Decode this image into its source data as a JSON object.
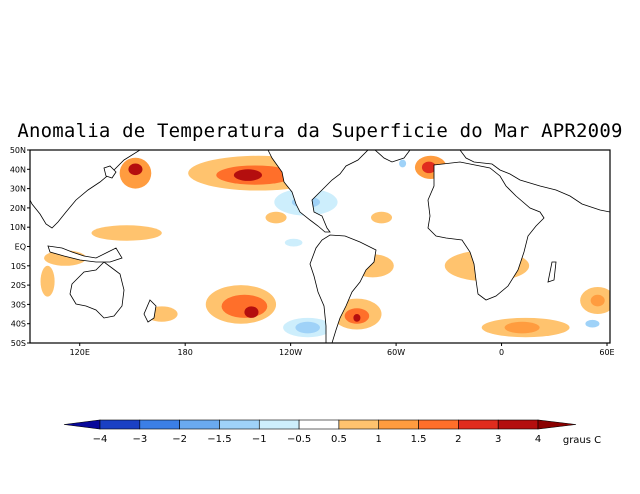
{
  "title": "Anomalia de Temperatura da Superficie do Mar APR2009",
  "map": {
    "lat_labels": [
      "50N",
      "40N",
      "30N",
      "20N",
      "10N",
      "EQ",
      "10S",
      "20S",
      "30S",
      "40S",
      "50S"
    ],
    "lon_labels": [
      "120E",
      "180",
      "120W",
      "60W",
      "0",
      "60E"
    ],
    "region": {
      "lon_range": [
        90,
        420
      ],
      "lat_range": [
        -50,
        50
      ]
    }
  },
  "colorbar": {
    "unit_label": "graus C",
    "labels": [
      "−4",
      "−3",
      "−2",
      "−1.5",
      "−1",
      "−0.5",
      "0.5",
      "1",
      "1.5",
      "2",
      "3",
      "4"
    ],
    "colors": [
      "#08089a",
      "#1a40c4",
      "#3b7fe6",
      "#6aaaf0",
      "#9fd2f8",
      "#cdeefc",
      "#ffffff",
      "#ffc36e",
      "#ff9c3f",
      "#ff6f2a",
      "#e02c1e",
      "#b40e0e",
      "#8a0000"
    ]
  },
  "anomalies": [
    {
      "name": "n-pacific-warm",
      "lon": 220,
      "lat": 38,
      "rx": 40,
      "ry": 9,
      "level": 1
    },
    {
      "name": "n-pacific-warm-core",
      "lon": 218,
      "lat": 37,
      "rx": 22,
      "ry": 5,
      "level": 3
    },
    {
      "name": "n-pacific-warm-peak",
      "lon": 214,
      "lat": 37,
      "rx": 8,
      "ry": 3,
      "level": 5
    },
    {
      "name": "japan-warm",
      "lon": 150,
      "lat": 38,
      "rx": 9,
      "ry": 8,
      "level": 2
    },
    {
      "name": "japan-warm-core",
      "lon": 150,
      "lat": 40,
      "rx": 4,
      "ry": 3,
      "level": 5
    },
    {
      "name": "ne-pacific-cool",
      "lon": 247,
      "lat": 23,
      "rx": 18,
      "ry": 7,
      "level": -1
    },
    {
      "name": "ne-pacific-cool-core",
      "lon": 247,
      "lat": 23,
      "rx": 8,
      "ry": 3,
      "level": -2
    },
    {
      "name": "n-atlantic-warm",
      "lon": 318,
      "lat": 41,
      "rx": 9,
      "ry": 6,
      "level": 2
    },
    {
      "name": "n-atlantic-warm-peak",
      "lon": 317,
      "lat": 41,
      "rx": 4,
      "ry": 3,
      "level": 4
    },
    {
      "name": "n-atlantic-warm-b",
      "lon": 336,
      "lat": 35,
      "rx": 8,
      "ry": 5,
      "level": 1
    },
    {
      "name": "med-warm",
      "lon": 398,
      "lat": 38,
      "rx": 8,
      "ry": 5,
      "level": 1
    },
    {
      "name": "med-warm-peak",
      "lon": 400,
      "lat": 42,
      "rx": 2,
      "ry": 2,
      "level": 5
    },
    {
      "name": "trop-atlantic-cool",
      "lon": 346,
      "lat": 6,
      "rx": 9,
      "ry": 5,
      "level": -1
    },
    {
      "name": "trop-atlantic-cool-core",
      "lon": 346,
      "lat": 6,
      "rx": 4,
      "ry": 2,
      "level": -2
    },
    {
      "name": "s-atlantic-warm",
      "lon": 350,
      "lat": -10,
      "rx": 24,
      "ry": 8,
      "level": 1
    },
    {
      "name": "se-pacific-warm",
      "lon": 285,
      "lat": -10,
      "rx": 12,
      "ry": 6,
      "level": 1
    },
    {
      "name": "s-pacific-warm",
      "lon": 210,
      "lat": -30,
      "rx": 20,
      "ry": 10,
      "level": 1
    },
    {
      "name": "s-pacific-warm-core",
      "lon": 212,
      "lat": -31,
      "rx": 13,
      "ry": 6,
      "level": 3
    },
    {
      "name": "s-pacific-warm-peak",
      "lon": 216,
      "lat": -34,
      "rx": 4,
      "ry": 3,
      "level": 5
    },
    {
      "name": "s-pacific-warm-b",
      "lon": 276,
      "lat": -35,
      "rx": 14,
      "ry": 8,
      "level": 1
    },
    {
      "name": "s-pacific-warm-b-core",
      "lon": 276,
      "lat": -36,
      "rx": 7,
      "ry": 4,
      "level": 3
    },
    {
      "name": "s-pacific-warm-b-peak",
      "lon": 276,
      "lat": -37,
      "rx": 2,
      "ry": 2,
      "level": 5
    },
    {
      "name": "s-pacific-cool",
      "lon": 248,
      "lat": -42,
      "rx": 14,
      "ry": 5,
      "level": -1
    },
    {
      "name": "s-pacific-cool-core",
      "lon": 248,
      "lat": -42,
      "rx": 7,
      "ry": 3,
      "level": -2
    },
    {
      "name": "s-ocean-warm",
      "lon": 372,
      "lat": -42,
      "rx": 25,
      "ry": 5,
      "level": 1
    },
    {
      "name": "s-ocean-warm-core",
      "lon": 370,
      "lat": -42,
      "rx": 10,
      "ry": 3,
      "level": 2
    },
    {
      "name": "s-indian-warm",
      "lon": 413,
      "lat": -28,
      "rx": 10,
      "ry": 7,
      "level": 1
    },
    {
      "name": "s-indian-warm-core",
      "lon": 413,
      "lat": -28,
      "rx": 4,
      "ry": 3,
      "level": 2
    },
    {
      "name": "s-indian-cool",
      "lon": 410,
      "lat": -40,
      "rx": 4,
      "ry": 2,
      "level": -2
    },
    {
      "name": "w-pacific-warm",
      "lon": 145,
      "lat": 7,
      "rx": 20,
      "ry": 4,
      "level": 1
    },
    {
      "name": "indian-warm",
      "lon": 110,
      "lat": -6,
      "rx": 12,
      "ry": 4,
      "level": 1
    },
    {
      "name": "tasman-warm",
      "lon": 165,
      "lat": -35,
      "rx": 9,
      "ry": 4,
      "level": 1
    },
    {
      "name": "ne-pacific-warm",
      "lon": 230,
      "lat": 15,
      "rx": 6,
      "ry": 3,
      "level": 1
    },
    {
      "name": "caribbean-warm",
      "lon": 290,
      "lat": 15,
      "rx": 6,
      "ry": 3,
      "level": 1
    },
    {
      "name": "w-atlantic-cool",
      "lon": 302,
      "lat": 43,
      "rx": 2,
      "ry": 2,
      "level": -2
    },
    {
      "name": "aus-w-warm",
      "lon": 100,
      "lat": -18,
      "rx": 4,
      "ry": 8,
      "level": 1
    },
    {
      "name": "e-pacific-cool",
      "lon": 240,
      "lat": 2,
      "rx": 5,
      "ry": 2,
      "level": -1
    }
  ]
}
